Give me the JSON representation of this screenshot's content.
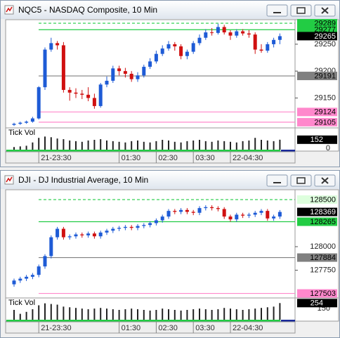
{
  "chart_data": [
    {
      "type": "candlestick",
      "title": "NQC5 - NASDAQ Composite, 10 Min",
      "categories": [
        null,
        null,
        null,
        null,
        "21-23:30",
        null,
        null,
        null,
        null,
        null,
        null,
        null,
        null,
        null,
        null,
        null,
        null,
        "01:30",
        null,
        null,
        null,
        null,
        null,
        "02:30",
        null,
        null,
        null,
        null,
        null,
        "03:30",
        null,
        null,
        null,
        null,
        null,
        "22-04:30",
        null,
        null,
        null,
        null,
        null,
        null,
        null,
        null
      ],
      "open": [
        29100,
        29102,
        29104,
        29106,
        29112,
        29170,
        29240,
        29252,
        29248,
        29165,
        29160,
        29158,
        29156,
        29150,
        29135,
        29175,
        29182,
        29205,
        29200,
        29195,
        29185,
        29192,
        29208,
        29218,
        29232,
        29242,
        29250,
        29246,
        29228,
        29236,
        29252,
        29262,
        29272,
        29271,
        29282,
        29272,
        29266,
        29274,
        29270,
        29268,
        29240,
        29238,
        29250,
        29258
      ],
      "high": [
        29104,
        29106,
        29108,
        29115,
        29172,
        29244,
        29262,
        29256,
        29254,
        29170,
        29168,
        29165,
        29170,
        29158,
        29178,
        29190,
        29210,
        29210,
        29206,
        29200,
        29198,
        29212,
        29224,
        29238,
        29248,
        29256,
        29254,
        29250,
        29240,
        29256,
        29268,
        29278,
        29280,
        29288,
        29286,
        29276,
        29278,
        29278,
        29276,
        29272,
        29250,
        29254,
        29262,
        29270
      ],
      "low": [
        29098,
        29100,
        29102,
        29104,
        29110,
        29165,
        29236,
        29240,
        29160,
        29145,
        29150,
        29148,
        29144,
        29130,
        29132,
        29170,
        29178,
        29192,
        29188,
        29180,
        29180,
        29188,
        29204,
        29214,
        29228,
        29238,
        29238,
        29222,
        29222,
        29232,
        29248,
        29258,
        29266,
        29268,
        29268,
        29258,
        29262,
        29266,
        29262,
        29232,
        29234,
        29234,
        29244,
        29250
      ],
      "close": [
        29102,
        29104,
        29106,
        29112,
        29170,
        29240,
        29252,
        29248,
        29165,
        29160,
        29158,
        29156,
        29150,
        29135,
        29175,
        29182,
        29205,
        29200,
        29195,
        29185,
        29192,
        29208,
        29218,
        29232,
        29242,
        29250,
        29246,
        29228,
        29236,
        29252,
        29262,
        29272,
        29271,
        29282,
        29272,
        29266,
        29274,
        29270,
        29268,
        29240,
        29238,
        29250,
        29258,
        29265
      ],
      "up_color": "#1e5bd6",
      "down_color": "#d01010",
      "ylim": [
        29097,
        29293
      ],
      "yticks": [
        29150,
        29200,
        29250
      ],
      "levels": [
        {
          "value": 29289,
          "color": "#22cc44",
          "text_color": "#000000",
          "line": "dash"
        },
        {
          "value": 29277,
          "color": "#22cc44",
          "text_color": "#000000",
          "line": "solid"
        },
        {
          "value": 29265,
          "color": "#000000",
          "text_color": "#ffffff",
          "line": "none"
        },
        {
          "value": 29191,
          "color": "#808080",
          "text_color": "#000000",
          "line": "solid"
        },
        {
          "value": 29124,
          "color": "#ff88cc",
          "text_color": "#000000",
          "line": "solid"
        },
        {
          "value": 29105,
          "color": "#ff88cc",
          "text_color": "#000000",
          "line": "solid"
        }
      ],
      "volume_label": "Tick Vol",
      "volume": [
        40,
        50,
        60,
        110,
        180,
        200,
        190,
        170,
        160,
        140,
        130,
        120,
        140,
        150,
        160,
        140,
        130,
        120,
        110,
        130,
        140,
        120,
        110,
        130,
        150,
        140,
        120,
        110,
        130,
        140,
        150,
        130,
        120,
        140,
        130,
        120,
        110,
        130,
        140,
        180,
        150,
        140,
        130,
        152
      ],
      "volume_ylim": [
        0,
        300
      ],
      "volume_ticks": [
        0
      ]
    },
    {
      "type": "candlestick",
      "title": "DJI - DJ Industrial Average, 10 Min",
      "categories": [
        null,
        null,
        null,
        null,
        "21-23:30",
        null,
        null,
        null,
        null,
        null,
        null,
        null,
        null,
        null,
        null,
        null,
        null,
        "01:30",
        null,
        null,
        null,
        null,
        null,
        "02:30",
        null,
        null,
        null,
        null,
        null,
        "03:30",
        null,
        null,
        null,
        null,
        null,
        "22-04:30",
        null,
        null,
        null,
        null,
        null,
        null,
        null,
        null
      ],
      "open": [
        127600,
        127640,
        127660,
        127680,
        127700,
        127790,
        127900,
        128100,
        128190,
        128100,
        128110,
        128130,
        128120,
        128140,
        128110,
        128150,
        128170,
        128190,
        128200,
        128210,
        128200,
        128220,
        128230,
        128250,
        128280,
        128320,
        128380,
        128370,
        128390,
        128370,
        128360,
        128410,
        128420,
        128410,
        128400,
        128320,
        128290,
        128340,
        128330,
        128340,
        128360,
        128380,
        128300,
        128320
      ],
      "high": [
        127660,
        127680,
        127700,
        127720,
        127810,
        127920,
        128120,
        128210,
        128210,
        128130,
        128150,
        128150,
        128160,
        128160,
        128170,
        128190,
        128210,
        128220,
        128230,
        128230,
        128240,
        128250,
        128270,
        128300,
        128340,
        128400,
        128400,
        128410,
        128410,
        128390,
        128430,
        128440,
        128440,
        128430,
        128420,
        128340,
        128360,
        128360,
        128360,
        128380,
        128400,
        128400,
        128340,
        128389
      ],
      "low": [
        127575,
        127615,
        127635,
        127655,
        127675,
        127765,
        127875,
        128075,
        128075,
        128075,
        128085,
        128095,
        128095,
        128085,
        128085,
        128125,
        128145,
        128165,
        128175,
        128175,
        128175,
        128195,
        128205,
        128225,
        128255,
        128295,
        128345,
        128345,
        128345,
        128335,
        128335,
        128385,
        128385,
        128375,
        128295,
        128265,
        128265,
        128305,
        128305,
        128315,
        128335,
        128275,
        128275,
        128295
      ],
      "close": [
        127640,
        127660,
        127680,
        127700,
        127790,
        127900,
        128100,
        128190,
        128100,
        128110,
        128130,
        128120,
        128140,
        128110,
        128150,
        128170,
        128190,
        128200,
        128210,
        128200,
        128220,
        128230,
        128250,
        128280,
        128320,
        128380,
        128370,
        128390,
        128370,
        128360,
        128410,
        128420,
        128410,
        128400,
        128320,
        128290,
        128340,
        128330,
        128340,
        128360,
        128380,
        128300,
        128320,
        128369
      ],
      "up_color": "#1e5bd6",
      "down_color": "#d01010",
      "ylim": [
        127470,
        128590
      ],
      "yticks": [
        127750,
        128000
      ],
      "levels": [
        {
          "value": 128500,
          "color": "#ddffdd",
          "text_color": "#000000",
          "line": "dash"
        },
        {
          "value": 128369,
          "color": "#000000",
          "text_color": "#ffffff",
          "line": "none"
        },
        {
          "value": 128265,
          "color": "#22cc44",
          "text_color": "#000000",
          "line": "solid"
        },
        {
          "value": 127884,
          "color": "#808080",
          "text_color": "#000000",
          "line": "solid"
        },
        {
          "value": 127503,
          "color": "#ff88cc",
          "text_color": "#000000",
          "line": "solid"
        }
      ],
      "volume_label": "Tick Vol",
      "volume": [
        150,
        90,
        120,
        160,
        220,
        250,
        240,
        230,
        200,
        190,
        180,
        170,
        160,
        170,
        180,
        170,
        160,
        150,
        160,
        170,
        160,
        150,
        140,
        150,
        170,
        160,
        150,
        140,
        150,
        160,
        170,
        160,
        150,
        160,
        180,
        170,
        160,
        150,
        160,
        170,
        180,
        190,
        200,
        254
      ],
      "volume_ylim": [
        0,
        300
      ],
      "volume_ticks": [
        150
      ]
    }
  ]
}
